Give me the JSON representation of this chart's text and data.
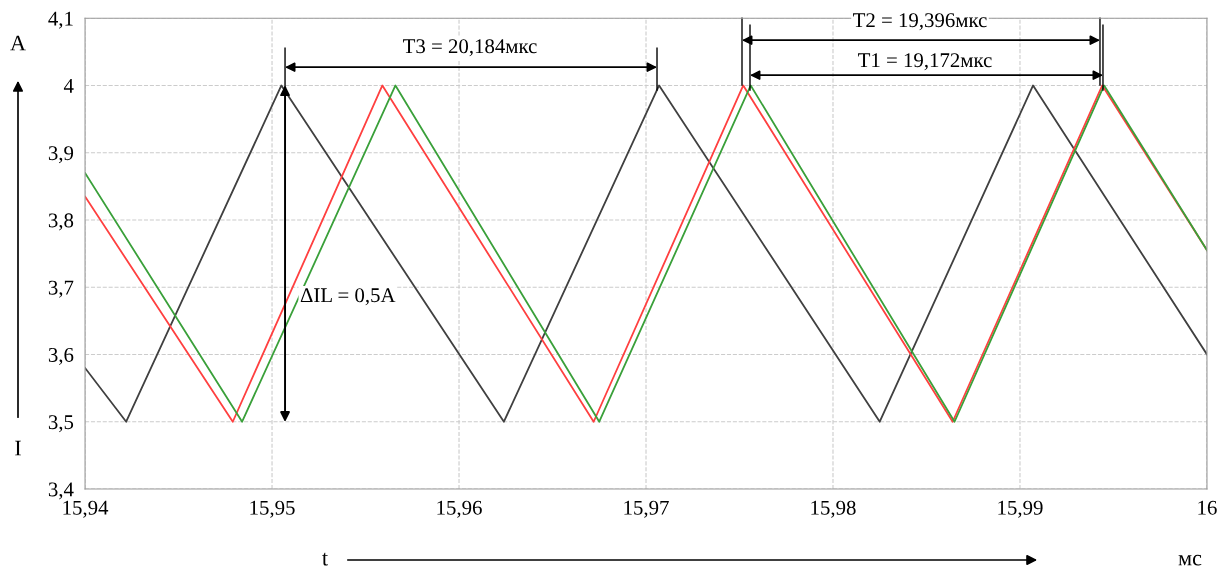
{
  "chart_data": {
    "type": "line",
    "xlabel": "t",
    "ylabel": "I",
    "xlim": [
      15.94,
      16
    ],
    "xticks": [
      {
        "value": 15.94,
        "label": "15,94"
      },
      {
        "value": 15.95,
        "label": "15,95"
      },
      {
        "value": 15.96,
        "label": "15,96"
      },
      {
        "value": 15.97,
        "label": "15,97"
      },
      {
        "value": 15.98,
        "label": "15,98"
      },
      {
        "value": 15.99,
        "label": "15,99"
      },
      {
        "value": 16,
        "label": "16"
      }
    ],
    "ylim": [
      3.4,
      4.1
    ],
    "yticks": [
      {
        "value": 3.4,
        "label": "3,4"
      },
      {
        "value": 3.5,
        "label": "3,5"
      },
      {
        "value": 3.6,
        "label": "3,6"
      },
      {
        "value": 3.7,
        "label": "3,7"
      },
      {
        "value": 3.8,
        "label": "3,8"
      },
      {
        "value": 3.9,
        "label": "3,9"
      },
      {
        "value": 4,
        "label": "4"
      },
      {
        "value": 4.1,
        "label": "4,1"
      }
    ],
    "grid": true,
    "legend": false,
    "marker": "none",
    "line_style": "solid",
    "series": [
      {
        "color": "#404040",
        "x": [
          15.94,
          15.9422,
          15.9505,
          15.9624,
          15.9707,
          15.9825,
          15.9907,
          16
        ],
        "values": [
          3.58,
          3.5,
          4.0,
          3.5,
          4.0,
          3.5,
          4.0,
          3.6
        ]
      },
      {
        "color": "#ff4040",
        "x": [
          15.94,
          15.9479,
          15.9559,
          15.9672,
          15.9752,
          15.9864,
          15.9944,
          16
        ],
        "values": [
          3.835,
          3.5,
          4.0,
          3.5,
          4.0,
          3.5,
          4.0,
          3.755
        ]
      },
      {
        "color": "#3aa03a",
        "x": [
          15.94,
          15.9484,
          15.9566,
          15.9675,
          15.9756,
          15.9865,
          15.9945,
          16
        ],
        "values": [
          3.87,
          3.5,
          4.0,
          3.5,
          4.0,
          3.5,
          4.0,
          3.755
        ]
      }
    ],
    "annotations": [
      "T3 = 20,184мкс",
      "T2 = 19,396мкс",
      "T1 = 19,172мкс",
      "ΔIL = 0,5A",
      "A",
      "мс"
    ]
  }
}
